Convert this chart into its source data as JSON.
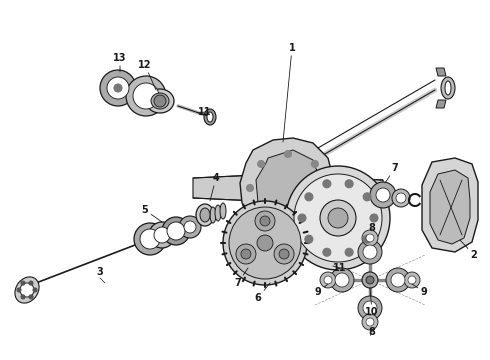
{
  "bg_color": "#ffffff",
  "line_color": "#1a1a1a",
  "fig_width": 4.9,
  "fig_height": 3.6,
  "dpi": 100,
  "lw": 0.8,
  "lw_thick": 1.5,
  "lw_thin": 0.5
}
